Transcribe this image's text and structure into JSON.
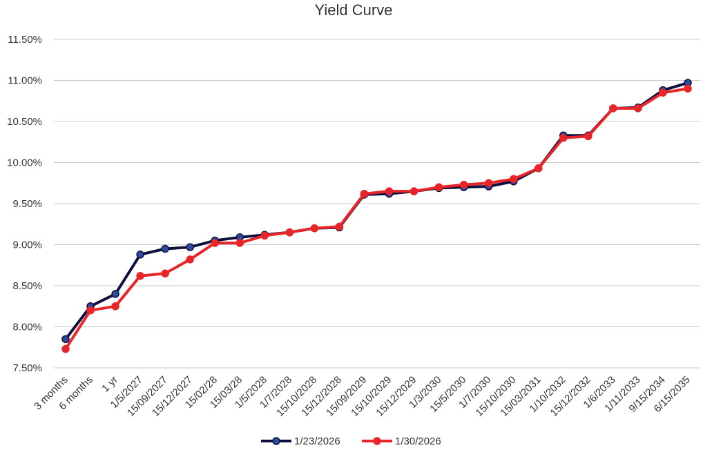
{
  "chart_data": {
    "type": "line",
    "title": "Yield Curve",
    "xlabel": "",
    "ylabel": "",
    "ylim": [
      7.5,
      11.5
    ],
    "yticks": [
      "7.50%",
      "8.00%",
      "8.50%",
      "9.00%",
      "9.50%",
      "10.00%",
      "10.50%",
      "11.00%",
      "11.50%"
    ],
    "ytick_values": [
      7.5,
      8.0,
      8.5,
      9.0,
      9.5,
      10.0,
      10.5,
      11.0,
      11.5
    ],
    "grid": true,
    "legend_position": "bottom",
    "categories": [
      "3 months",
      "6 months",
      "1 yr",
      "1/5/2027",
      "15/09/2027",
      "15/12/2027",
      "15/02/28",
      "15/03/28",
      "1/5/2028",
      "1/7/2028",
      "15/10/2028",
      "15/12/2028",
      "15/09/2029",
      "15/10/2029",
      "15/12/2029",
      "1/3/2030",
      "15/5/2030",
      "1/7/2030",
      "15/10/2030",
      "15/03/2031",
      "1/10/2032",
      "15/12/2032",
      "1/6/2033",
      "1/11/2033",
      "9/15/2034",
      "6/15/2035"
    ],
    "series": [
      {
        "name": "1/23/2026",
        "color": "#101040",
        "marker_color": "#2e4a9a",
        "values": [
          7.85,
          8.25,
          8.4,
          8.88,
          8.95,
          8.97,
          9.05,
          9.09,
          9.12,
          9.15,
          9.2,
          9.21,
          9.61,
          9.62,
          9.65,
          9.69,
          9.7,
          9.71,
          9.77,
          9.93,
          10.33,
          10.33,
          10.66,
          10.67,
          10.88,
          10.97
        ]
      },
      {
        "name": "1/30/2026",
        "color": "#e8262a",
        "marker_color": "#e8262a",
        "values": [
          7.73,
          8.2,
          8.25,
          8.62,
          8.65,
          8.82,
          9.02,
          9.02,
          9.11,
          9.15,
          9.2,
          9.22,
          9.62,
          9.65,
          9.65,
          9.7,
          9.73,
          9.75,
          9.8,
          9.93,
          10.3,
          10.32,
          10.66,
          10.66,
          10.85,
          10.9
        ]
      }
    ]
  }
}
